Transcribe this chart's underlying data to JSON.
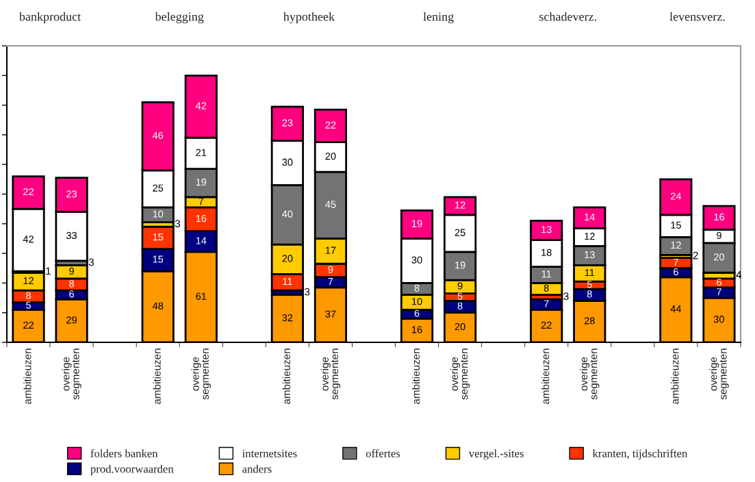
{
  "chart_data": {
    "type": "bar",
    "stacked": true,
    "data_labels": true,
    "legend": "bottom",
    "categories": [
      "ambitieuzen",
      "overige\nsegmenten",
      null,
      "ambitieuzen",
      "overige\nsegmenten",
      null,
      "ambitieuzen",
      "overige\nsegmenten",
      null,
      "ambitieuzen",
      "overige\nsegmenten",
      null,
      "ambitieuzen",
      "overige\nsegmenten",
      null,
      "ambitieuzen",
      "overige\nsegmenten"
    ],
    "annotations": [
      "bankproduct",
      "belegging",
      "hypotheek",
      "lening",
      "schadeverz.",
      "levensverz."
    ],
    "ylim": [
      0,
      200
    ],
    "yticks": [
      {
        "value": 0,
        "label": null
      },
      {
        "value": 20,
        "label": null
      },
      {
        "value": 40,
        "label": null
      },
      {
        "value": 60,
        "label": null
      },
      {
        "value": 80,
        "label": null
      },
      {
        "value": 100,
        "label": null
      },
      {
        "value": 120,
        "label": null
      },
      {
        "value": 140,
        "label": null
      },
      {
        "value": 160,
        "label": null
      },
      {
        "value": 180,
        "label": null
      },
      {
        "value": 200,
        "label": null
      }
    ],
    "series": [
      {
        "name": "anders",
        "color": "#ff9900",
        "values": [
          22,
          29,
          null,
          48,
          61,
          null,
          32,
          37,
          null,
          16,
          20,
          null,
          22,
          28,
          null,
          44,
          30
        ]
      },
      {
        "name": "prod.voorwaarden",
        "color": "#000080",
        "values": [
          5,
          6,
          null,
          15,
          14,
          null,
          3,
          7,
          null,
          6,
          8,
          null,
          7,
          8,
          null,
          6,
          7
        ]
      },
      {
        "name": "kranten, tijdschriften",
        "color": "#ff3300",
        "values": [
          8,
          8,
          null,
          15,
          16,
          null,
          11,
          9,
          null,
          null,
          5,
          null,
          3,
          5,
          null,
          7,
          6
        ]
      },
      {
        "name": "vergel.-sites",
        "color": "#ffcc00",
        "values": [
          12,
          9,
          null,
          3,
          7,
          null,
          20,
          17,
          null,
          10,
          9,
          null,
          8,
          11,
          null,
          2,
          4
        ]
      },
      {
        "name": "offertes",
        "color": "#737373",
        "values": [
          1,
          3,
          null,
          10,
          19,
          null,
          40,
          45,
          null,
          8,
          19,
          null,
          11,
          13,
          null,
          12,
          20
        ]
      },
      {
        "name": "internetsites",
        "color": "#ffffff",
        "values": [
          42,
          33,
          null,
          25,
          21,
          null,
          30,
          20,
          null,
          30,
          25,
          null,
          18,
          12,
          null,
          15,
          9
        ]
      },
      {
        "name": "folders banken",
        "color": "#ff0080",
        "values": [
          22,
          23,
          null,
          46,
          42,
          null,
          23,
          22,
          null,
          19,
          12,
          null,
          13,
          14,
          null,
          24,
          16
        ]
      }
    ]
  }
}
